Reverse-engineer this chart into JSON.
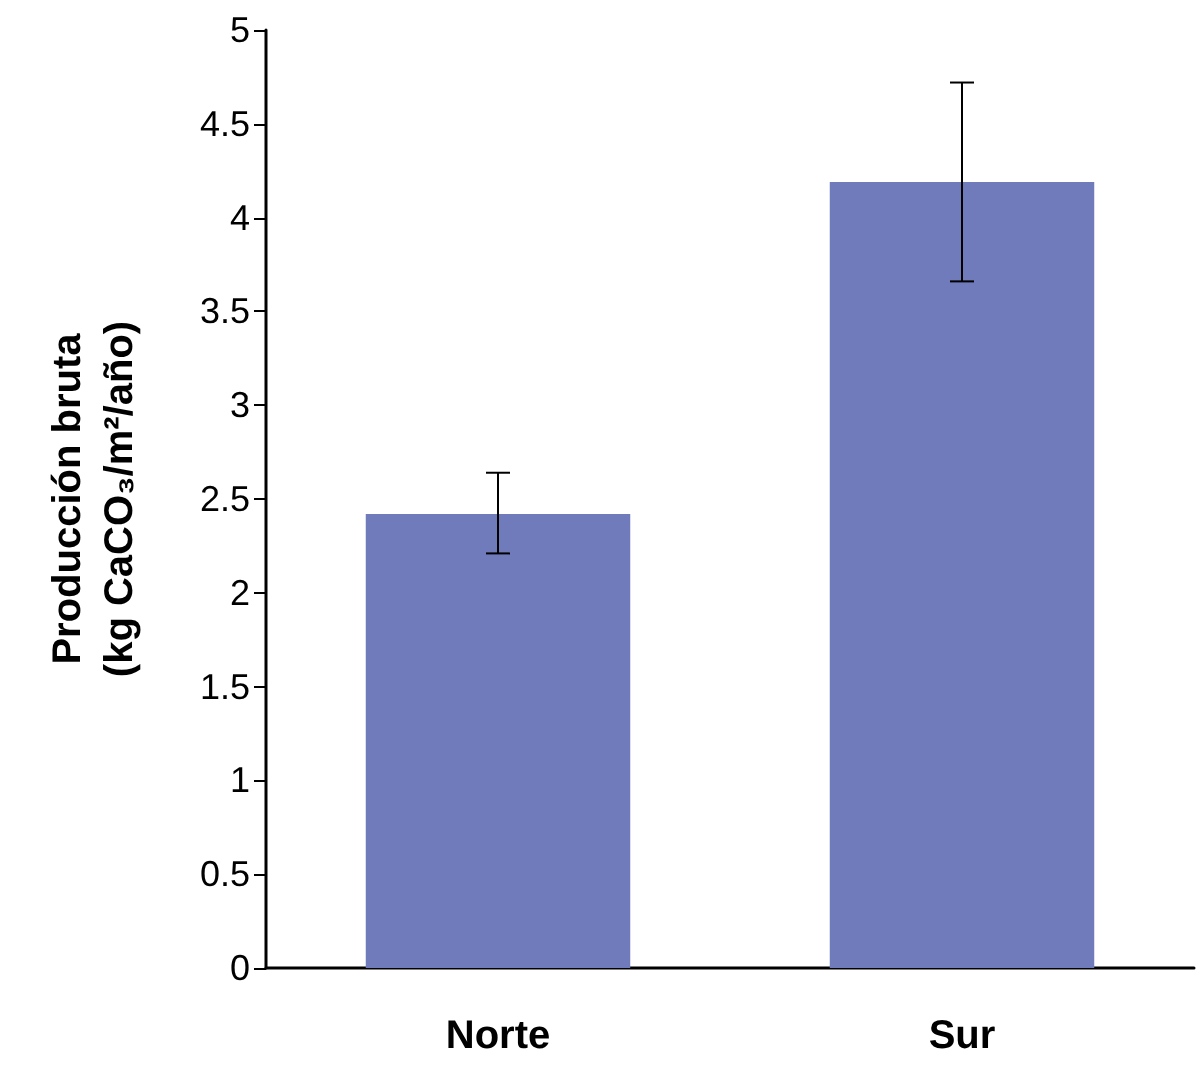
{
  "chart_data": {
    "type": "bar",
    "ylabel": "Producción bruta\n(kg CaCO₃/m²/año)",
    "categories": [
      "Norte",
      "Sur"
    ],
    "values": [
      2.42,
      4.19
    ],
    "errors": [
      [
        2.21,
        2.64
      ],
      [
        3.66,
        4.72
      ]
    ],
    "color": "#6f7bbb",
    "ylim": [
      0,
      5
    ],
    "yticks": [
      0,
      0.5,
      1,
      1.5,
      2,
      2.5,
      3,
      3.5,
      4,
      4.5,
      5
    ],
    "grid": false
  }
}
